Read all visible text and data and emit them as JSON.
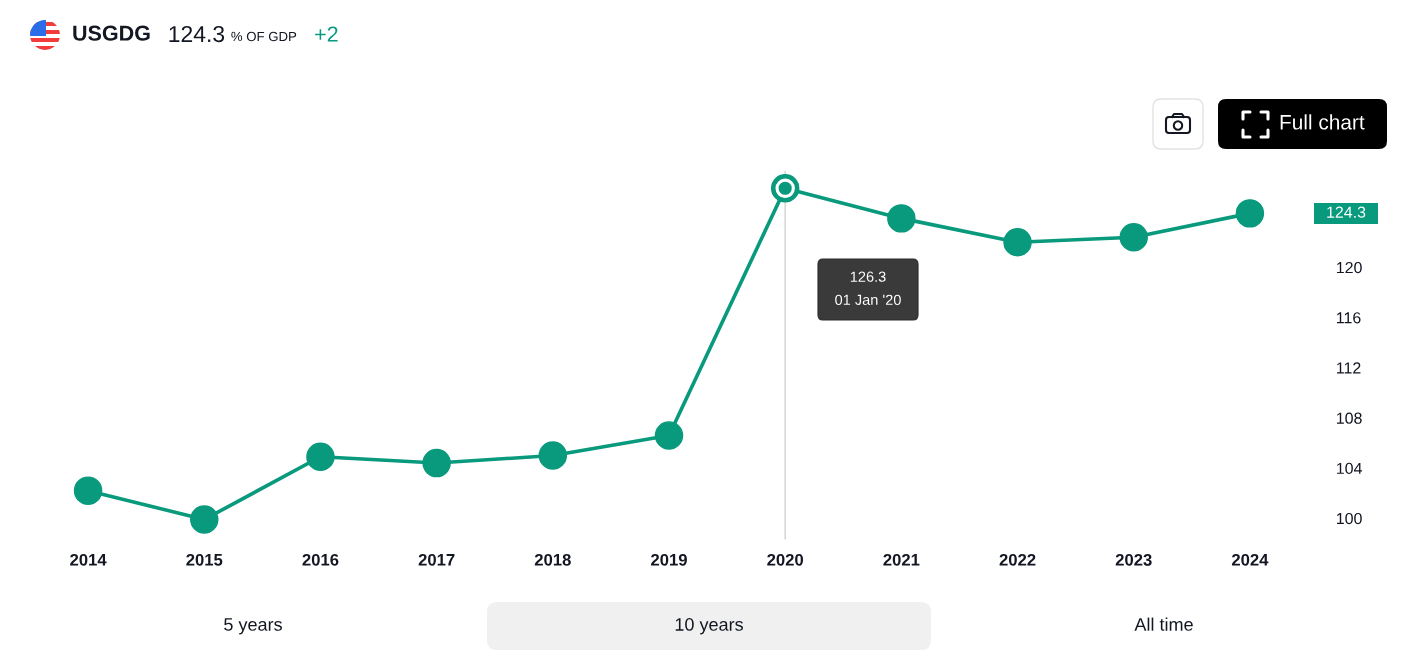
{
  "chart_data": {
    "type": "line",
    "title": "USGDG",
    "subtitle": "124.3 % OF GDP +2",
    "categories": [
      "2014",
      "2015",
      "2016",
      "2017",
      "2018",
      "2019",
      "2020",
      "2021",
      "2022",
      "2023",
      "2024"
    ],
    "series": [
      {
        "color": "#099a7d",
        "values": [
          102.2,
          99.9,
          104.9,
          104.4,
          105.0,
          106.6,
          126.3,
          123.9,
          122.0,
          122.4,
          124.3
        ]
      }
    ],
    "ylim": [
      98.3,
      127.7
    ],
    "yticks": [
      100,
      104,
      108,
      112,
      116,
      120
    ],
    "marker": "circle",
    "line_style": "solid",
    "ref_lines": [
      {
        "axis": "x",
        "value": "2020",
        "color": "#d9d9d9"
      }
    ],
    "annotations": [
      "Full chart",
      "5 years",
      "10 years",
      "All time",
      "126.3\n01 Jan '20",
      "124.3"
    ]
  }
}
